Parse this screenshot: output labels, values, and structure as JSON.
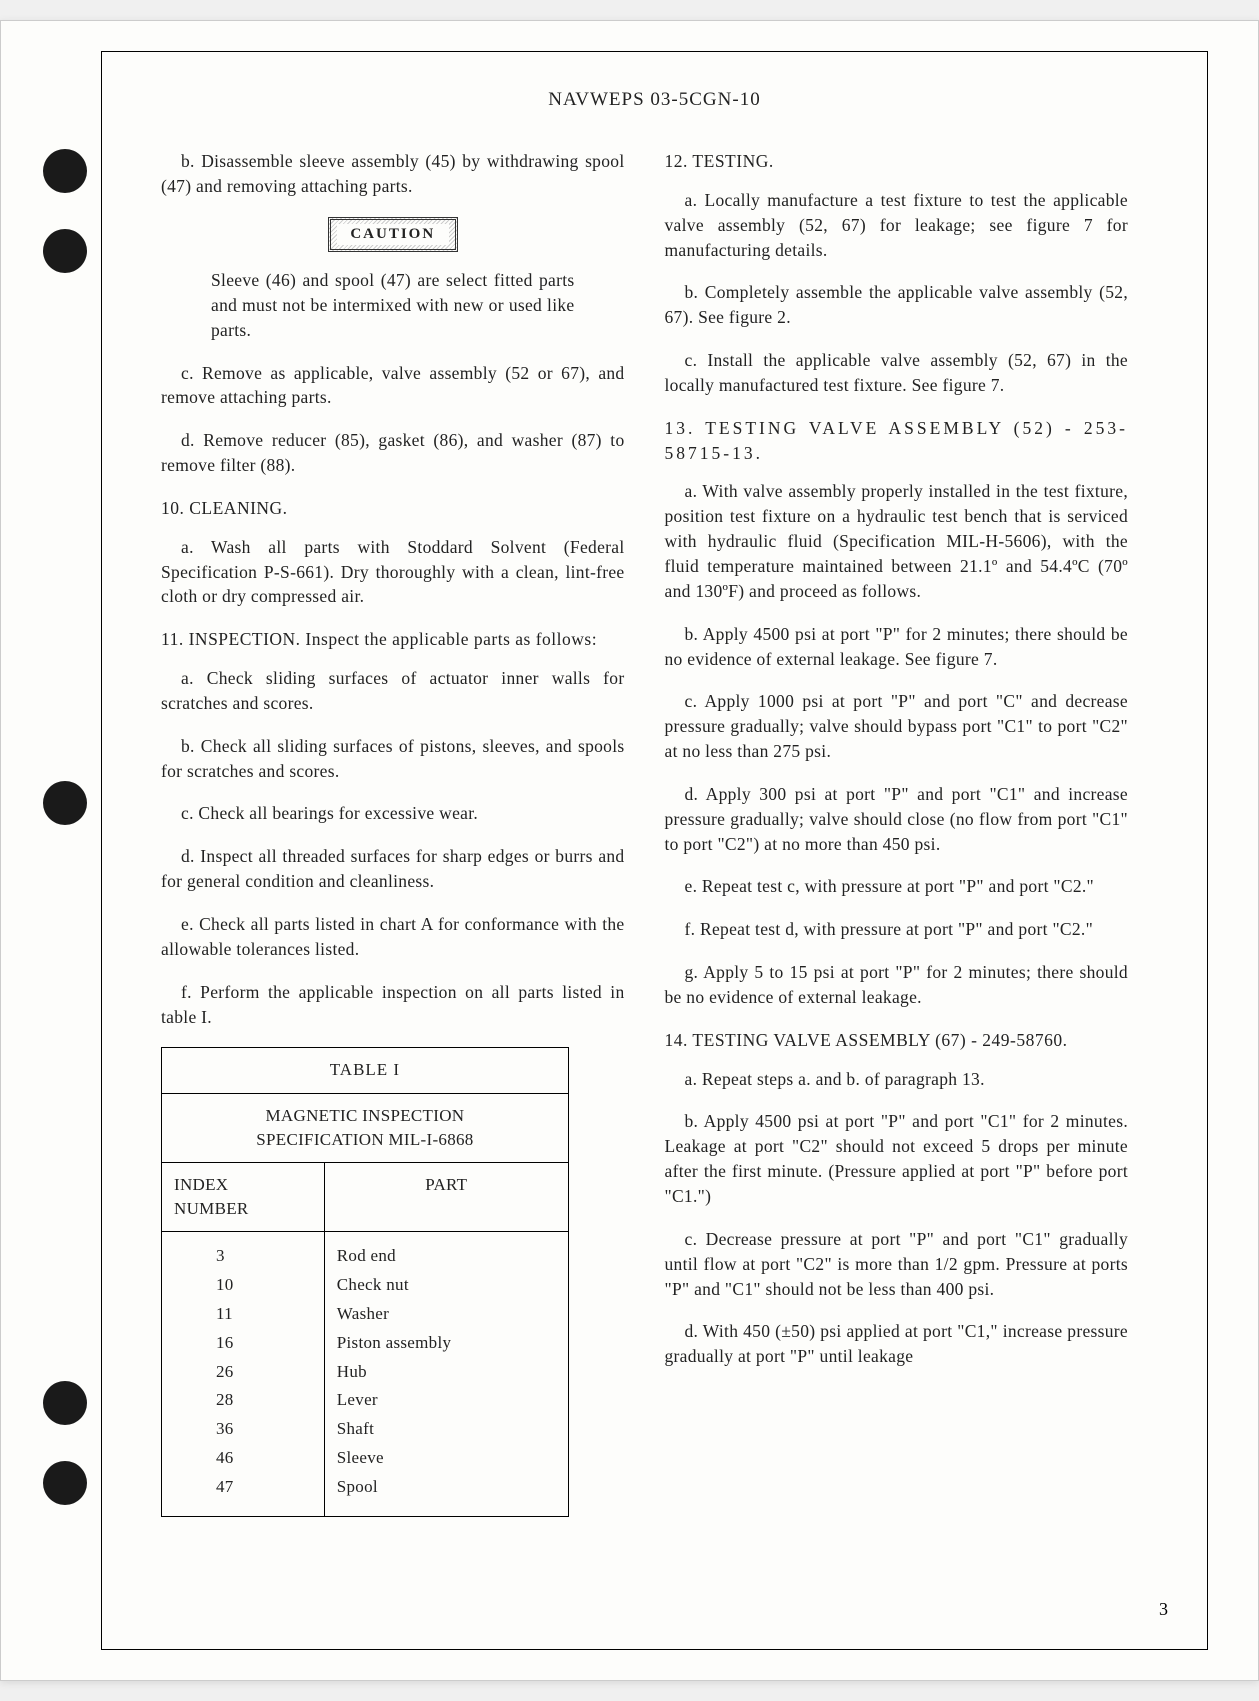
{
  "header": "NAVWEPS 03-5CGN-10",
  "left": {
    "p1": "b. Disassemble sleeve assembly (45) by withdrawing spool (47) and removing attaching parts.",
    "caution_label": "CAUTION",
    "caution_text": "Sleeve (46) and spool (47) are select fitted parts and must not be intermixed with new or used like parts.",
    "p2": "c. Remove as applicable, valve assembly (52 or 67), and remove attaching parts.",
    "p3": "d. Remove reducer (85), gasket (86), and washer (87) to remove filter (88).",
    "s10_head": "10. CLEANING.",
    "s10_a": "a. Wash all parts with Stoddard Solvent (Federal Specification P-S-661). Dry thoroughly with a clean, lint-free cloth or dry compressed air.",
    "s11_head": "11. INSPECTION.  Inspect the applicable parts as follows:",
    "s11_a": "a. Check sliding surfaces of actuator inner walls for scratches and scores.",
    "s11_b": "b. Check all sliding surfaces of pistons, sleeves, and spools for scratches and scores.",
    "s11_c": "c. Check all bearings for excessive wear.",
    "s11_d": "d. Inspect all threaded surfaces for sharp edges or burrs and for general condition and cleanliness.",
    "s11_e": "e. Check all parts listed in chart A for conformance with the allowable tolerances listed.",
    "s11_f": "f. Perform the applicable inspection on all parts listed in table I.",
    "table": {
      "title": "TABLE I",
      "spec_line1": "MAGNETIC INSPECTION",
      "spec_line2": "SPECIFICATION MIL-I-6868",
      "col1": "INDEX NUMBER",
      "col2": "PART",
      "rows": [
        {
          "idx": "3",
          "part": "Rod end"
        },
        {
          "idx": "10",
          "part": "Check nut"
        },
        {
          "idx": "11",
          "part": "Washer"
        },
        {
          "idx": "16",
          "part": "Piston assembly"
        },
        {
          "idx": "26",
          "part": "Hub"
        },
        {
          "idx": "28",
          "part": "Lever"
        },
        {
          "idx": "36",
          "part": "Shaft"
        },
        {
          "idx": "46",
          "part": "Sleeve"
        },
        {
          "idx": "47",
          "part": "Spool"
        }
      ]
    }
  },
  "right": {
    "s12_head": "12. TESTING.",
    "s12_a": "a. Locally manufacture a test fixture to test the applicable valve assembly (52, 67) for leakage; see figure 7 for manufacturing details.",
    "s12_b": "b. Completely assemble the applicable valve assembly (52, 67). See figure 2.",
    "s12_c": "c. Install the applicable valve assembly (52, 67) in the locally manufactured test fixture. See figure 7.",
    "s13_head": "13. TESTING VALVE ASSEMBLY (52) - 253-58715-13.",
    "s13_a": "a. With valve assembly properly installed in the test fixture, position test fixture on a hydraulic test bench that is serviced with hydraulic fluid (Specification MIL-H-5606), with the fluid temperature maintained between 21.1º and 54.4ºC (70º and 130ºF) and proceed as follows.",
    "s13_b": "b. Apply 4500 psi at port \"P\" for 2 minutes; there should be no evidence of external leakage.  See figure 7.",
    "s13_c": "c. Apply 1000 psi at port \"P\" and port \"C\" and decrease pressure gradually; valve should bypass port \"C1\" to port \"C2\" at no less than 275 psi.",
    "s13_d": "d. Apply 300 psi at port \"P\" and port \"C1\" and increase pressure gradually; valve should close (no flow from port \"C1\" to port \"C2\") at no more than 450 psi.",
    "s13_e": "e. Repeat test c, with pressure at port \"P\" and port \"C2.\"",
    "s13_f": "f. Repeat test d, with pressure at port \"P\" and port \"C2.\"",
    "s13_g": "g. Apply 5 to 15 psi at port \"P\" for 2 minutes; there should be no evidence of external leakage.",
    "s14_head": "14. TESTING VALVE ASSEMBLY (67) - 249-58760.",
    "s14_a": "a. Repeat steps a. and b. of paragraph 13.",
    "s14_b": "b. Apply 4500 psi at port \"P\" and port \"C1\" for 2 minutes.  Leakage at port \"C2\" should not exceed 5 drops per minute after the first minute. (Pressure applied at port \"P\" before port \"C1.\")",
    "s14_c": "c. Decrease pressure at port \"P\" and port \"C1\" gradually until flow at port \"C2\" is more than 1/2 gpm. Pressure at ports \"P\" and \"C1\" should not be less than 400 psi.",
    "s14_d": "d. With 450 (±50) psi applied at port \"C1,\" increase pressure gradually at port \"P\" until leakage"
  },
  "page_number": "3"
}
